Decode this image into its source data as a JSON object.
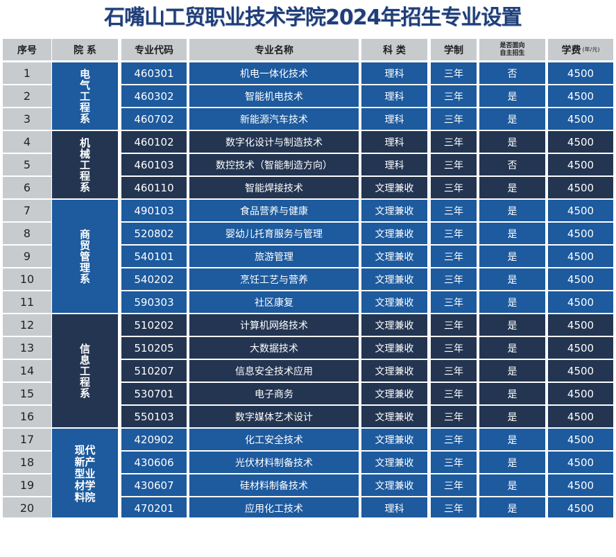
{
  "title": "石嘴山工贸职业技术学院2024年招生专业设置",
  "headers": {
    "seq": "序号",
    "dept": "院 系",
    "code": "专业代码",
    "name": "专业名称",
    "subject": "科 类",
    "duration": "学制",
    "self_line1": "是否面向",
    "self_line2": "自主招生",
    "fee": "学费",
    "fee_unit": "(年/元)"
  },
  "departments": [
    {
      "name": "电气工程系",
      "rows": 3,
      "color": "blue"
    },
    {
      "name": "机械工程系",
      "rows": 3,
      "color": "navy"
    },
    {
      "name": "商贸管理系",
      "rows": 5,
      "color": "blue"
    },
    {
      "name": "信息工程系",
      "rows": 5,
      "color": "navy"
    },
    {
      "name": "现代新产型业材学料院",
      "rows": 4,
      "color": "blue"
    }
  ],
  "rows": [
    {
      "seq": "1",
      "code": "460301",
      "name": "机电一体化技术",
      "subject": "理科",
      "duration": "三年",
      "self": "否",
      "fee": "4500"
    },
    {
      "seq": "2",
      "code": "460302",
      "name": "智能机电技术",
      "subject": "理科",
      "duration": "三年",
      "self": "是",
      "fee": "4500"
    },
    {
      "seq": "3",
      "code": "460702",
      "name": "新能源汽车技术",
      "subject": "理科",
      "duration": "三年",
      "self": "是",
      "fee": "4500"
    },
    {
      "seq": "4",
      "code": "460102",
      "name": "数字化设计与制造技术",
      "subject": "理科",
      "duration": "三年",
      "self": "是",
      "fee": "4500"
    },
    {
      "seq": "5",
      "code": "460103",
      "name": "数控技术（智能制造方向）",
      "subject": "理科",
      "duration": "三年",
      "self": "否",
      "fee": "4500"
    },
    {
      "seq": "6",
      "code": "460110",
      "name": "智能焊接技术",
      "subject": "文理兼收",
      "duration": "三年",
      "self": "是",
      "fee": "4500"
    },
    {
      "seq": "7",
      "code": "490103",
      "name": "食品营养与健康",
      "subject": "文理兼收",
      "duration": "三年",
      "self": "是",
      "fee": "4500"
    },
    {
      "seq": "8",
      "code": "520802",
      "name": "婴幼儿托育服务与管理",
      "subject": "文理兼收",
      "duration": "三年",
      "self": "是",
      "fee": "4500"
    },
    {
      "seq": "9",
      "code": "540101",
      "name": "旅游管理",
      "subject": "文理兼收",
      "duration": "三年",
      "self": "是",
      "fee": "4500"
    },
    {
      "seq": "10",
      "code": "540202",
      "name": "烹饪工艺与营养",
      "subject": "文理兼收",
      "duration": "三年",
      "self": "是",
      "fee": "4500"
    },
    {
      "seq": "11",
      "code": "590303",
      "name": "社区康复",
      "subject": "文理兼收",
      "duration": "三年",
      "self": "是",
      "fee": "4500"
    },
    {
      "seq": "12",
      "code": "510202",
      "name": "计算机网络技术",
      "subject": "文理兼收",
      "duration": "三年",
      "self": "是",
      "fee": "4500"
    },
    {
      "seq": "13",
      "code": "510205",
      "name": "大数据技术",
      "subject": "文理兼收",
      "duration": "三年",
      "self": "是",
      "fee": "4500"
    },
    {
      "seq": "14",
      "code": "510207",
      "name": "信息安全技术应用",
      "subject": "文理兼收",
      "duration": "三年",
      "self": "是",
      "fee": "4500"
    },
    {
      "seq": "15",
      "code": "530701",
      "name": "电子商务",
      "subject": "文理兼收",
      "duration": "三年",
      "self": "是",
      "fee": "4500"
    },
    {
      "seq": "16",
      "code": "550103",
      "name": "数字媒体艺术设计",
      "subject": "文理兼收",
      "duration": "三年",
      "self": "是",
      "fee": "4500"
    },
    {
      "seq": "17",
      "code": "420902",
      "name": "化工安全技术",
      "subject": "文理兼收",
      "duration": "三年",
      "self": "是",
      "fee": "4500"
    },
    {
      "seq": "18",
      "code": "430606",
      "name": "光伏材料制备技术",
      "subject": "文理兼收",
      "duration": "三年",
      "self": "是",
      "fee": "4500"
    },
    {
      "seq": "19",
      "code": "430607",
      "name": "硅材料制备技术",
      "subject": "文理兼收",
      "duration": "三年",
      "self": "是",
      "fee": "4500"
    },
    {
      "seq": "20",
      "code": "470201",
      "name": "应用化工技术",
      "subject": "理科",
      "duration": "三年",
      "self": "是",
      "fee": "4500"
    }
  ],
  "colors": {
    "blue": "#1d5a9e",
    "navy": "#233551",
    "header_gray": "#c8cbce",
    "title": "#1f3e78"
  }
}
